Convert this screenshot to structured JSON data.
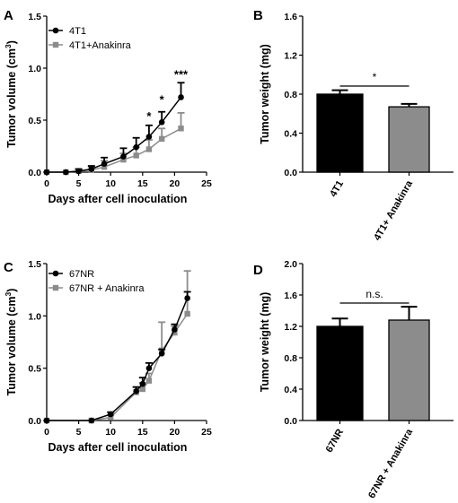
{
  "chart_data": [
    {
      "panel": "A",
      "type": "line",
      "xlabel": "Days after cell inoculation",
      "ylabel": "Tumor volume (cm",
      "ylabel_sup": "3",
      "ylabel_end": ")",
      "xlim": [
        0,
        25
      ],
      "ylim": [
        0,
        1.5
      ],
      "xticks": [
        "0",
        "5",
        "10",
        "15",
        "20",
        "25"
      ],
      "yticks": [
        "0.0",
        "0.5",
        "1.0",
        "1.5"
      ],
      "series": [
        {
          "name": "4T1",
          "color": "#000000",
          "marker": "circle",
          "x": [
            0,
            3,
            5,
            7,
            9,
            12,
            14,
            16,
            18,
            21
          ],
          "y": [
            0.0,
            0.0,
            0.01,
            0.03,
            0.08,
            0.15,
            0.24,
            0.34,
            0.48,
            0.72
          ],
          "err": [
            0.0,
            0.0,
            0.02,
            0.03,
            0.06,
            0.08,
            0.09,
            0.11,
            0.1,
            0.14
          ]
        },
        {
          "name": "4T1+Anakinra",
          "color": "#8c8c8c",
          "marker": "square",
          "x": [
            0,
            3,
            5,
            7,
            9,
            12,
            14,
            16,
            18,
            21
          ],
          "y": [
            0.0,
            0.0,
            0.01,
            0.02,
            0.05,
            0.12,
            0.16,
            0.22,
            0.32,
            0.42
          ],
          "err": [
            0.0,
            0.0,
            0.02,
            0.03,
            0.06,
            0.06,
            0.08,
            0.09,
            0.1,
            0.15
          ]
        }
      ],
      "annotations": [
        {
          "text": "*",
          "x": 16,
          "y": 0.5
        },
        {
          "text": "*",
          "x": 18,
          "y": 0.66
        },
        {
          "text": "***",
          "x": 21,
          "y": 0.9
        }
      ]
    },
    {
      "panel": "B",
      "type": "bar",
      "ylabel": "Tumor weight (mg)",
      "ylim": [
        0,
        1.6
      ],
      "yticks": [
        "0.0",
        "0.4",
        "0.8",
        "1.2",
        "1.6"
      ],
      "categories": [
        "4T1",
        "4T1+ Anakinra"
      ],
      "values": [
        0.8,
        0.67
      ],
      "errors": [
        0.04,
        0.03
      ],
      "colors": [
        "#000000",
        "#8c8c8c"
      ],
      "significance": "*"
    },
    {
      "panel": "C",
      "type": "line",
      "xlabel": "Days after cell inoculation",
      "ylabel": "Tumor volume (cm",
      "ylabel_sup": "3",
      "ylabel_end": ")",
      "xlim": [
        0,
        25
      ],
      "ylim": [
        0,
        1.5
      ],
      "xticks": [
        "0",
        "5",
        "10",
        "15",
        "20",
        "25"
      ],
      "yticks": [
        "0.0",
        "0.5",
        "1.0",
        "1.5"
      ],
      "series": [
        {
          "name": "67NR",
          "color": "#000000",
          "marker": "circle",
          "x": [
            0,
            7,
            10,
            14,
            15,
            16,
            18,
            20,
            22
          ],
          "y": [
            0.0,
            0.0,
            0.06,
            0.28,
            0.35,
            0.5,
            0.64,
            0.87,
            1.17
          ],
          "err": [
            0.0,
            0.0,
            0.02,
            0.04,
            0.06,
            0.05,
            0.04,
            0.05,
            0.06
          ]
        },
        {
          "name": "67NR + Anakinra",
          "color": "#8c8c8c",
          "marker": "square",
          "x": [
            0,
            7,
            10,
            14,
            15,
            16,
            18,
            20,
            22
          ],
          "y": [
            0.0,
            0.0,
            0.03,
            0.27,
            0.3,
            0.38,
            0.67,
            0.84,
            1.02
          ],
          "err": [
            0.0,
            0.0,
            0.02,
            0.05,
            0.06,
            0.07,
            0.27,
            0.06,
            0.41
          ]
        }
      ]
    },
    {
      "panel": "D",
      "type": "bar",
      "ylabel": "Tumor weight (mg)",
      "ylim": [
        0,
        2.0
      ],
      "yticks": [
        "0.0",
        "0.4",
        "0.8",
        "1.2",
        "1.6",
        "2.0"
      ],
      "categories": [
        "67NR",
        "67NR + Anakinra"
      ],
      "values": [
        1.2,
        1.28
      ],
      "errors": [
        0.1,
        0.17
      ],
      "colors": [
        "#000000",
        "#8c8c8c"
      ],
      "significance": "n.s."
    }
  ]
}
